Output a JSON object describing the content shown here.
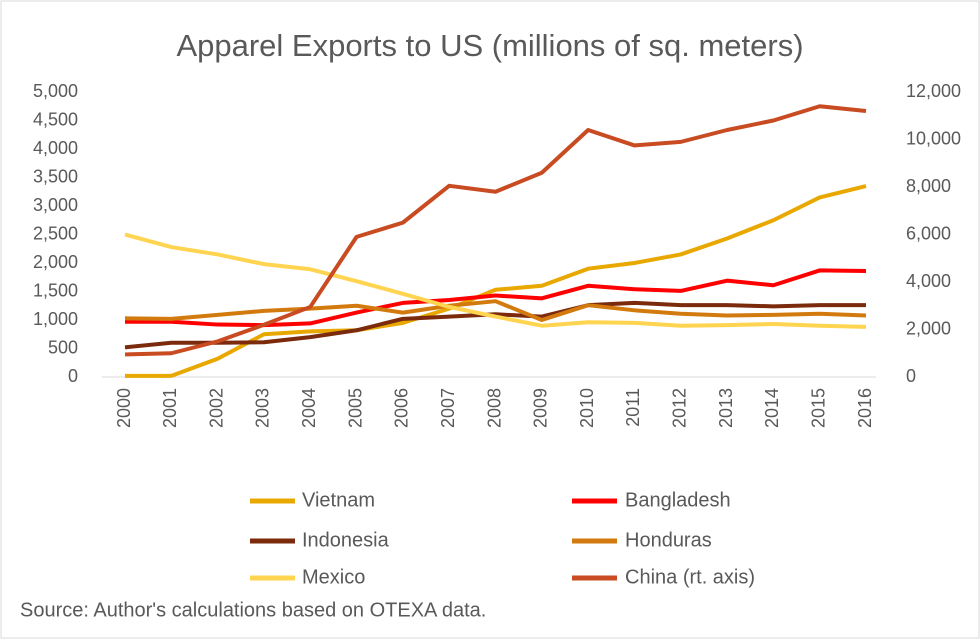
{
  "chart_data": {
    "type": "line",
    "title": "Apparel Exports to US (millions of sq. meters)",
    "categories": [
      "2000",
      "2001",
      "2002",
      "2003",
      "2004",
      "2005",
      "2006",
      "2007",
      "2008",
      "2009",
      "2010",
      "2011",
      "2012",
      "2013",
      "2014",
      "2015",
      "2016"
    ],
    "series": [
      {
        "name": "Vietnam",
        "color": "#e8a800",
        "values": [
          20,
          20,
          320,
          750,
          800,
          820,
          950,
          1200,
          1530,
          1600,
          1900,
          2000,
          2150,
          2430,
          2750,
          3150,
          3350
        ]
      },
      {
        "name": "Bangladesh",
        "color": "#ff0000",
        "values": [
          970,
          970,
          920,
          910,
          940,
          1130,
          1300,
          1350,
          1430,
          1380,
          1600,
          1540,
          1510,
          1690,
          1610,
          1870,
          1860
        ]
      },
      {
        "name": "Indonesia",
        "color": "#7b2a0c",
        "values": [
          520,
          600,
          600,
          610,
          700,
          820,
          1020,
          1060,
          1100,
          1060,
          1260,
          1300,
          1260,
          1260,
          1240,
          1260,
          1260
        ]
      },
      {
        "name": "Honduras",
        "color": "#d27a0e",
        "values": [
          1030,
          1020,
          1090,
          1160,
          1200,
          1250,
          1130,
          1250,
          1330,
          1000,
          1260,
          1170,
          1110,
          1080,
          1090,
          1110,
          1080
        ]
      },
      {
        "name": "Mexico",
        "color": "#ffd450",
        "values": [
          2500,
          2280,
          2150,
          1980,
          1890,
          1680,
          1460,
          1230,
          1060,
          900,
          960,
          950,
          900,
          910,
          930,
          900,
          880
        ]
      },
      {
        "name": "China (rt. axis)",
        "color": "#c84b22",
        "axis": "y2",
        "values": [
          950,
          1000,
          1500,
          2200,
          2950,
          5900,
          6500,
          8050,
          7800,
          8600,
          10400,
          9750,
          9900,
          10400,
          10800,
          11400,
          11200
        ]
      }
    ],
    "ylim": [
      0,
      5000
    ],
    "yticks": [
      0,
      500,
      {
        "value": 1000,
        "label": "1,000"
      },
      {
        "value": 1500,
        "label": "1,500"
      },
      {
        "value": 2000,
        "label": "2,000"
      },
      {
        "value": 2500,
        "label": "2,500"
      },
      {
        "value": 3000,
        "label": "3,000"
      },
      {
        "value": 3500,
        "label": "3,500"
      },
      {
        "value": 4000,
        "label": "4,000"
      },
      {
        "value": 4500,
        "label": "4,500"
      },
      {
        "value": 5000,
        "label": "5,000"
      }
    ],
    "y2lim": [
      0,
      12000
    ],
    "y2ticks": [
      0,
      {
        "value": 2000,
        "label": "2,000"
      },
      {
        "value": 4000,
        "label": "4,000"
      },
      {
        "value": 6000,
        "label": "6,000"
      },
      {
        "value": 8000,
        "label": "8,000"
      },
      {
        "value": 10000,
        "label": "10,000"
      },
      {
        "value": 12000,
        "label": "12,000"
      }
    ],
    "grid": false,
    "legend": "bottom",
    "source": "Source: Author's calculations based on OTEXA data."
  }
}
